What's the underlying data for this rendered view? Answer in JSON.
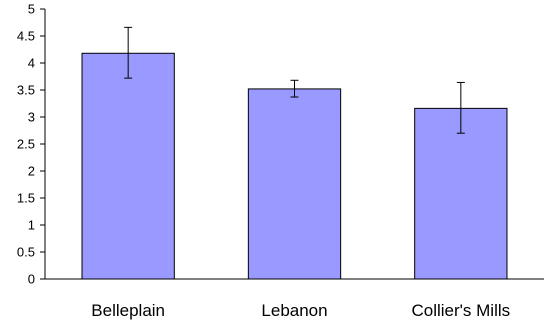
{
  "chart_data": {
    "type": "bar",
    "categories": [
      "Belleplain",
      "Lebanon",
      "Collier's Mills"
    ],
    "values": [
      4.18,
      3.52,
      3.16
    ],
    "error_low": [
      3.72,
      3.37,
      2.7
    ],
    "error_high": [
      4.66,
      3.68,
      3.64
    ],
    "ylim": [
      0,
      5
    ],
    "yticks": [
      "0",
      "0.5",
      "1",
      "1.5",
      "2",
      "2.5",
      "3",
      "3.5",
      "4",
      "4.5",
      "5"
    ],
    "ytick_values": [
      0,
      0.5,
      1,
      1.5,
      2,
      2.5,
      3,
      3.5,
      4,
      4.5,
      5
    ],
    "grid": false,
    "legend": "none",
    "colors": {
      "bar_fill": "#9999ff",
      "bar_stroke": "#000000",
      "axis": "#000000"
    }
  }
}
